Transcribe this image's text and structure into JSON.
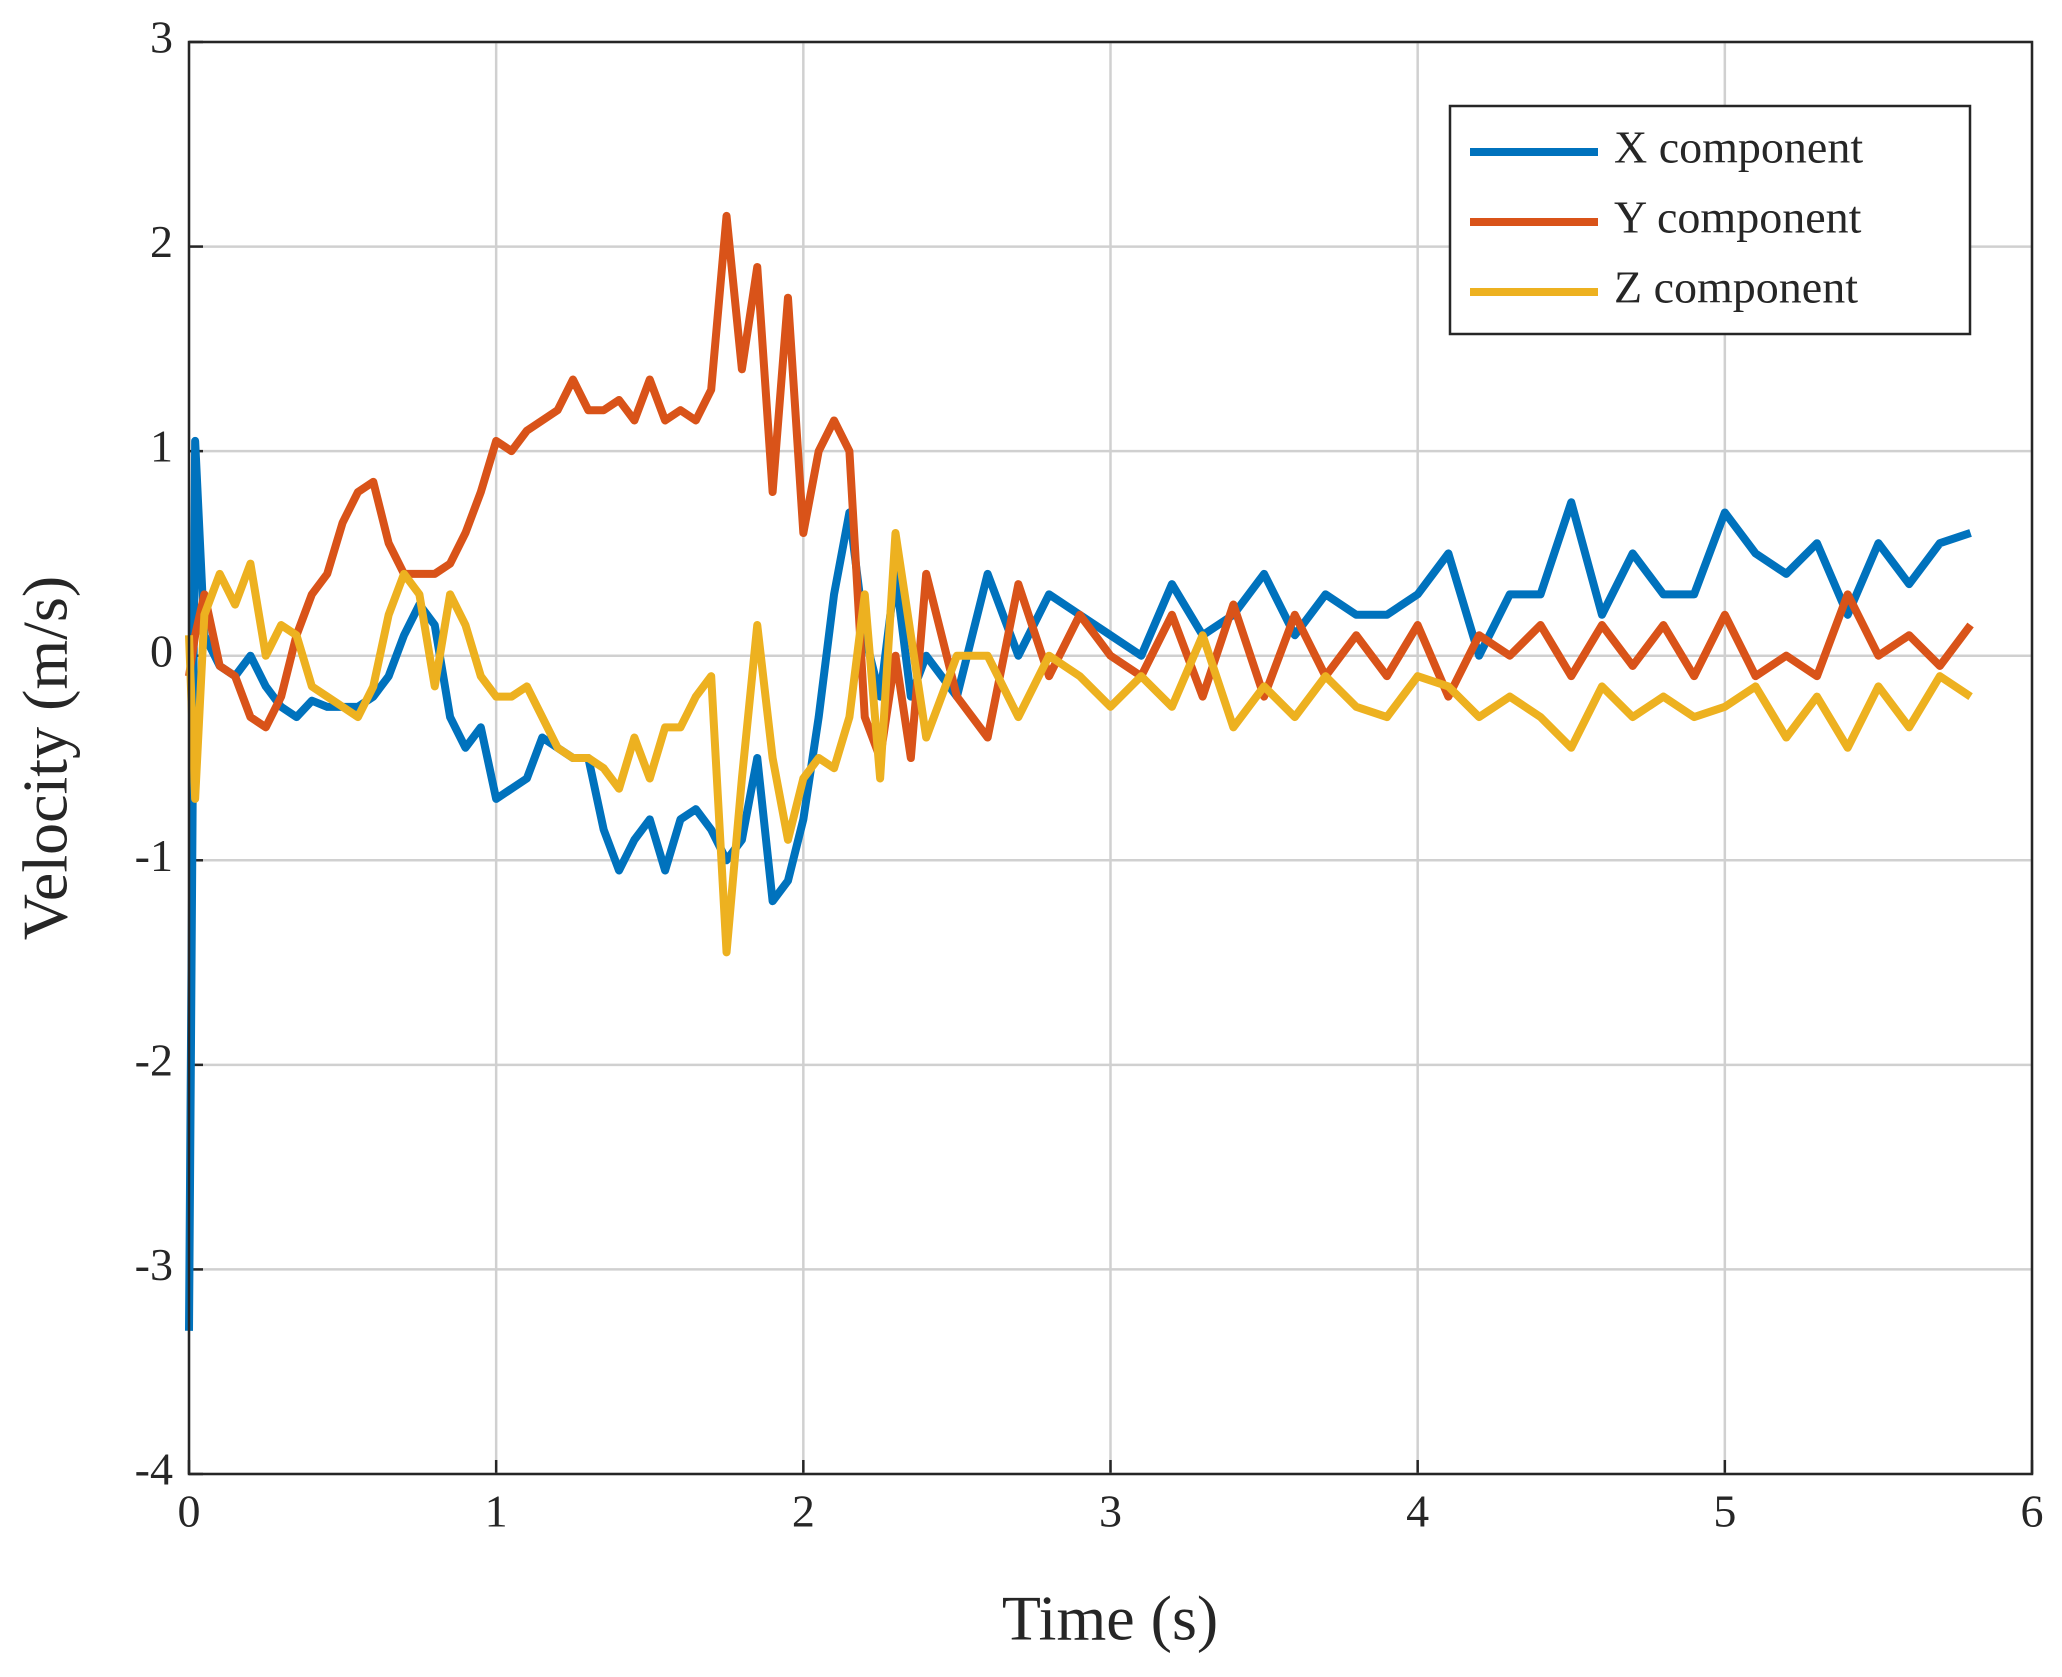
{
  "chart_data": {
    "type": "line",
    "xlabel": "Time (s)",
    "ylabel": "Velocity (m/s)",
    "xlim": [
      0,
      6
    ],
    "xticks": [
      0,
      1,
      2,
      3,
      4,
      5,
      6
    ],
    "ylim": [
      -4,
      3
    ],
    "yticks": [
      -4,
      -3,
      -2,
      -1,
      0,
      1,
      2,
      3
    ],
    "grid": true,
    "legend": "upper right",
    "x": [
      0,
      0.02,
      0.05,
      0.1,
      0.15,
      0.2,
      0.25,
      0.3,
      0.35,
      0.4,
      0.45,
      0.5,
      0.55,
      0.6,
      0.65,
      0.7,
      0.75,
      0.8,
      0.85,
      0.9,
      0.95,
      1.0,
      1.05,
      1.1,
      1.15,
      1.2,
      1.25,
      1.3,
      1.35,
      1.4,
      1.45,
      1.5,
      1.55,
      1.6,
      1.65,
      1.7,
      1.75,
      1.8,
      1.85,
      1.9,
      1.95,
      2.0,
      2.05,
      2.1,
      2.15,
      2.2,
      2.25,
      2.3,
      2.35,
      2.4,
      2.5,
      2.6,
      2.7,
      2.8,
      2.9,
      3.0,
      3.1,
      3.2,
      3.3,
      3.4,
      3.5,
      3.6,
      3.7,
      3.8,
      3.9,
      4.0,
      4.1,
      4.2,
      4.3,
      4.4,
      4.5,
      4.6,
      4.7,
      4.8,
      4.9,
      5.0,
      5.1,
      5.2,
      5.3,
      5.4,
      5.5,
      5.6,
      5.7,
      5.8
    ],
    "series": [
      {
        "name": "X component",
        "color": "#0072bd",
        "values": [
          -3.3,
          1.05,
          0.1,
          -0.05,
          -0.1,
          0.0,
          -0.15,
          -0.25,
          -0.3,
          -0.22,
          -0.25,
          -0.25,
          -0.25,
          -0.2,
          -0.1,
          0.1,
          0.25,
          0.15,
          -0.3,
          -0.45,
          -0.35,
          -0.7,
          -0.65,
          -0.6,
          -0.4,
          -0.45,
          -0.5,
          -0.5,
          -0.85,
          -1.05,
          -0.9,
          -0.8,
          -1.05,
          -0.8,
          -0.75,
          -0.85,
          -1.0,
          -0.9,
          -0.5,
          -1.2,
          -1.1,
          -0.8,
          -0.3,
          0.3,
          0.7,
          0.1,
          -0.2,
          0.4,
          -0.2,
          0.0,
          -0.2,
          0.4,
          0.0,
          0.3,
          0.2,
          0.1,
          0.0,
          0.35,
          0.1,
          0.2,
          0.4,
          0.1,
          0.3,
          0.2,
          0.2,
          0.3,
          0.5,
          0.0,
          0.3,
          0.3,
          0.75,
          0.2,
          0.5,
          0.3,
          0.3,
          0.7,
          0.5,
          0.4,
          0.55,
          0.2,
          0.55,
          0.35,
          0.55,
          0.6
        ]
      },
      {
        "name": "Y component",
        "color": "#d95319",
        "values": [
          -0.1,
          0.1,
          0.3,
          -0.05,
          -0.1,
          -0.3,
          -0.35,
          -0.2,
          0.1,
          0.3,
          0.4,
          0.65,
          0.8,
          0.85,
          0.55,
          0.4,
          0.4,
          0.4,
          0.45,
          0.6,
          0.8,
          1.05,
          1.0,
          1.1,
          1.15,
          1.2,
          1.35,
          1.2,
          1.2,
          1.25,
          1.15,
          1.35,
          1.15,
          1.2,
          1.15,
          1.3,
          2.15,
          1.4,
          1.9,
          0.8,
          1.75,
          0.6,
          1.0,
          1.15,
          1.0,
          -0.3,
          -0.5,
          0.0,
          -0.5,
          0.4,
          -0.2,
          -0.4,
          0.35,
          -0.1,
          0.2,
          0.0,
          -0.1,
          0.2,
          -0.2,
          0.25,
          -0.2,
          0.2,
          -0.1,
          0.1,
          -0.1,
          0.15,
          -0.2,
          0.1,
          0.0,
          0.15,
          -0.1,
          0.15,
          -0.05,
          0.15,
          -0.1,
          0.2,
          -0.1,
          0.0,
          -0.1,
          0.3,
          0.0,
          0.1,
          -0.05,
          0.15
        ]
      },
      {
        "name": "Z component",
        "color": "#edb120",
        "values": [
          0.1,
          -0.7,
          0.2,
          0.4,
          0.25,
          0.45,
          0.0,
          0.15,
          0.1,
          -0.15,
          -0.2,
          -0.25,
          -0.3,
          -0.15,
          0.2,
          0.4,
          0.3,
          -0.15,
          0.3,
          0.15,
          -0.1,
          -0.2,
          -0.2,
          -0.15,
          -0.3,
          -0.45,
          -0.5,
          -0.5,
          -0.55,
          -0.65,
          -0.4,
          -0.6,
          -0.35,
          -0.35,
          -0.2,
          -0.1,
          -1.45,
          -0.6,
          0.15,
          -0.5,
          -0.9,
          -0.6,
          -0.5,
          -0.55,
          -0.3,
          0.3,
          -0.6,
          0.6,
          0.1,
          -0.4,
          0.0,
          0.0,
          -0.3,
          0.0,
          -0.1,
          -0.25,
          -0.1,
          -0.25,
          0.1,
          -0.35,
          -0.15,
          -0.3,
          -0.1,
          -0.25,
          -0.3,
          -0.1,
          -0.15,
          -0.3,
          -0.2,
          -0.3,
          -0.45,
          -0.15,
          -0.3,
          -0.2,
          -0.3,
          -0.25,
          -0.15,
          -0.4,
          -0.2,
          -0.45,
          -0.15,
          -0.35,
          -0.1,
          -0.2
        ]
      }
    ]
  }
}
